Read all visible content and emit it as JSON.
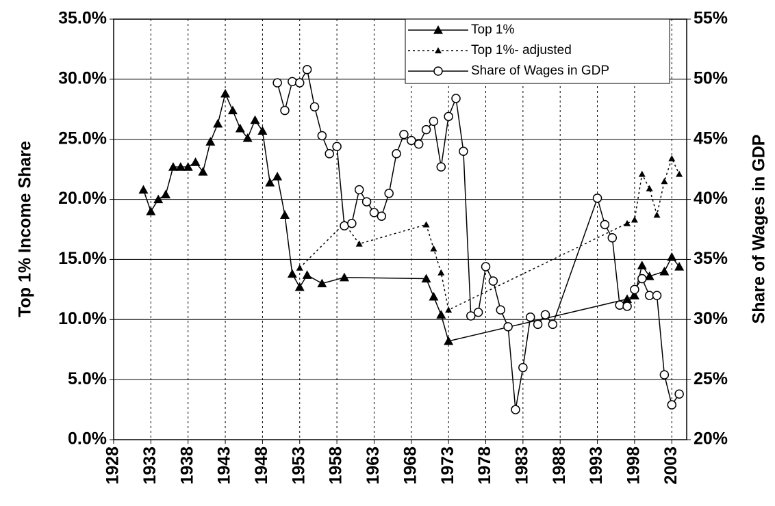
{
  "chart_data": {
    "type": "line",
    "y_label": "Top 1% Income Share",
    "y2_label": "Share of Wages in GDP",
    "xlim": [
      1928,
      2005
    ],
    "xticks": [
      1928,
      1933,
      1938,
      1943,
      1948,
      1953,
      1958,
      1963,
      1968,
      1973,
      1978,
      1983,
      1988,
      1993,
      1998,
      2003
    ],
    "ylim": [
      0,
      35
    ],
    "yticks": [
      {
        "value": 0,
        "label": "0.0%"
      },
      {
        "value": 5,
        "label": "5.0%"
      },
      {
        "value": 10,
        "label": "10.0%"
      },
      {
        "value": 15,
        "label": "15.0%"
      },
      {
        "value": 20,
        "label": "20.0%"
      },
      {
        "value": 25,
        "label": "25.0%"
      },
      {
        "value": 30,
        "label": "30.0%"
      },
      {
        "value": 35,
        "label": "35.0%"
      }
    ],
    "y2lim": [
      20,
      55
    ],
    "y2ticks": [
      {
        "value": 20,
        "label": "20%"
      },
      {
        "value": 25,
        "label": "25%"
      },
      {
        "value": 30,
        "label": "30%"
      },
      {
        "value": 35,
        "label": "35%"
      },
      {
        "value": 40,
        "label": "40%"
      },
      {
        "value": 45,
        "label": "45%"
      },
      {
        "value": 50,
        "label": "50%"
      },
      {
        "value": 55,
        "label": "55%"
      }
    ],
    "grid": true,
    "legend": "top-right",
    "series": [
      {
        "name": "Top 1%",
        "color": "#000000",
        "line_style": "solid",
        "marker": "triangle",
        "x": [
          1932,
          1933,
          1934,
          1935,
          1936,
          1937,
          1938,
          1939,
          1940,
          1941,
          1942,
          1943,
          1944,
          1945,
          1946,
          1947,
          1948,
          1949,
          1950,
          1951,
          1952,
          1953,
          1954,
          1956,
          1959,
          1970,
          1971,
          1972,
          1973,
          1997,
          1998,
          1999,
          2000,
          2002,
          2003,
          2004
        ],
        "values": [
          20.8,
          19.0,
          20.0,
          20.4,
          22.7,
          22.7,
          22.7,
          23.1,
          22.3,
          24.8,
          26.3,
          28.8,
          27.4,
          25.9,
          25.1,
          26.6,
          25.7,
          21.4,
          21.9,
          18.7,
          13.8,
          12.7,
          13.7,
          13.0,
          13.5,
          13.4,
          11.9,
          10.4,
          8.2,
          11.7,
          12.0,
          14.5,
          13.6,
          14.0,
          15.2,
          14.4
        ]
      },
      {
        "name": "Top 1%- adjusted",
        "color": "#000000",
        "line_style": "dotted",
        "marker": "small-triangle",
        "x": [
          1953,
          1959,
          1961,
          1970,
          1971,
          1972,
          1973,
          1997,
          1998,
          1999,
          2000,
          2001,
          2002,
          2003,
          2004
        ],
        "values": [
          14.3,
          18.0,
          16.3,
          17.9,
          15.9,
          13.9,
          10.8,
          18.0,
          18.3,
          22.1,
          20.9,
          18.7,
          21.5,
          23.4,
          22.1
        ]
      },
      {
        "name": "Share of Wages in GDP",
        "color": "#000000",
        "line_style": "solid",
        "marker": "circle",
        "axis": "y2",
        "x": [
          1950,
          1951,
          1952,
          1953,
          1954,
          1955,
          1956,
          1957,
          1958,
          1959,
          1960,
          1961,
          1962,
          1963,
          1964,
          1965,
          1966,
          1967,
          1968,
          1969,
          1970,
          1971,
          1972,
          1973,
          1974,
          1975,
          1976,
          1977,
          1978,
          1979,
          1980,
          1981,
          1982,
          1983,
          1984,
          1985,
          1986,
          1987,
          1993,
          1994,
          1995,
          1996,
          1997,
          1998,
          1999,
          2000,
          2001,
          2002,
          2003,
          2004
        ],
        "values": [
          49.7,
          47.4,
          49.8,
          49.7,
          50.8,
          47.7,
          45.3,
          43.8,
          44.4,
          37.8,
          38.0,
          40.8,
          39.8,
          38.9,
          38.6,
          40.5,
          43.8,
          45.4,
          44.9,
          44.6,
          45.8,
          46.5,
          42.7,
          46.9,
          48.4,
          44.0,
          30.3,
          30.6,
          34.4,
          33.2,
          30.8,
          29.4,
          22.5,
          26.0,
          30.2,
          29.6,
          30.4,
          29.6,
          40.1,
          37.9,
          36.8,
          31.2,
          31.1,
          32.5,
          33.4,
          32.0,
          32.0,
          25.4,
          22.9,
          23.8
        ]
      }
    ]
  }
}
